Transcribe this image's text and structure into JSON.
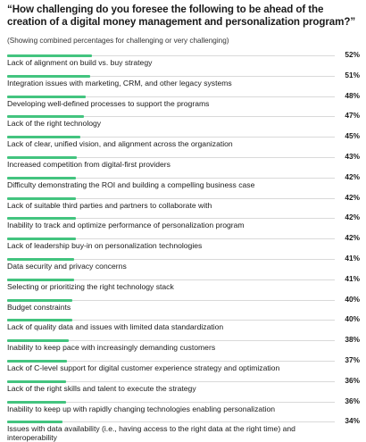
{
  "title": "“How challenging do you foresee the following to be ahead of the creation of a digital money management and personalization program?”",
  "subtitle": "(Showing combined percentages for challenging or very challenging)",
  "colors": {
    "bar": "#43c47f",
    "track": "#d9d9d9"
  },
  "chart_data": {
    "type": "bar",
    "orientation": "horizontal",
    "title": "“How challenging do you foresee the following to be ahead of the creation of a digital money management and personalization program?”",
    "subtitle": "(Showing combined percentages for challenging or very challenging)",
    "xlim": [
      0,
      100
    ],
    "unit": "%",
    "categories": [
      "Lack of alignment on build vs. buy strategy",
      "Integration issues with marketing, CRM, and other legacy systems",
      "Developing well-defined processes to support the programs",
      "Lack of the right technology",
      "Lack of clear, unified vision, and alignment across the organization",
      "Increased competition from digital-first providers",
      "Difficulty demonstrating the ROI and building a compelling business case",
      "Lack of suitable third parties and partners to collaborate with",
      "Inability to track and optimize performance of personalization program",
      "Lack of leadership buy-in on personalization technologies",
      "Data security and privacy concerns",
      "Selecting or prioritizing the right technology stack",
      "Budget constraints",
      "Lack of quality data and issues with limited data standardization",
      "Inability to keep pace with increasingly demanding customers",
      "Lack of C-level support for digital customer experience strategy and optimization",
      "Lack of the right skills and talent to execute the strategy",
      "Inability to keep up with rapidly changing technologies enabling personalization",
      "Issues with data availability (i.e., having access to the right data at the right time) and interoperability"
    ],
    "values": [
      52,
      51,
      48,
      47,
      45,
      43,
      42,
      42,
      42,
      42,
      41,
      41,
      40,
      40,
      38,
      37,
      36,
      36,
      34
    ],
    "labels": [
      "52%",
      "51%",
      "48%",
      "47%",
      "45%",
      "43%",
      "42%",
      "42%",
      "42%",
      "42%",
      "41%",
      "41%",
      "40%",
      "40%",
      "38%",
      "37%",
      "36%",
      "36%",
      "34%"
    ]
  }
}
